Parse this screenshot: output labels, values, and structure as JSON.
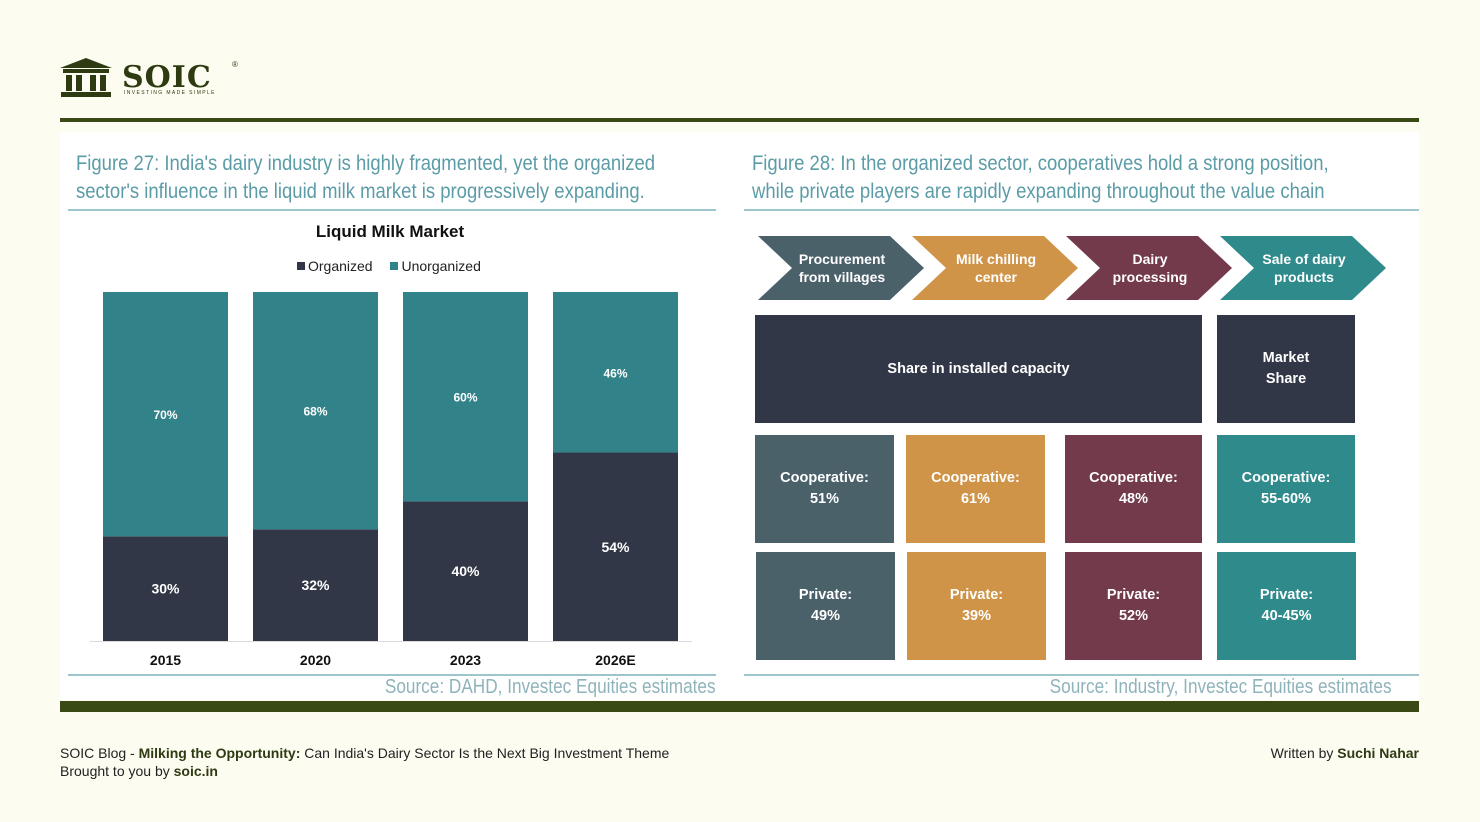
{
  "brand": {
    "name": "SOIC",
    "tagline": "INVESTING MADE SIMPLE",
    "reg": "®"
  },
  "figure27": {
    "title_line1": "Figure 27: India's dairy industry is highly fragmented, yet the organized",
    "title_line2": "sector's influence in the liquid milk market is progressively expanding.",
    "source": "Source: DAHD, Investec Equities estimates"
  },
  "chart_data": {
    "type": "bar",
    "stacked": true,
    "title": "Liquid Milk Market",
    "categories": [
      "2015",
      "2020",
      "2023",
      "2026E"
    ],
    "series": [
      {
        "name": "Organized",
        "values": [
          30,
          32,
          40,
          54
        ],
        "color": "#313747"
      },
      {
        "name": "Unorganized",
        "values": [
          70,
          68,
          60,
          46
        ],
        "color": "#328389"
      }
    ],
    "ylim": [
      0,
      100
    ],
    "value_suffix": "%",
    "legend_position": "top",
    "grid": false
  },
  "figure28": {
    "title_line1": "Figure 28: In the organized sector, cooperatives hold a strong position,",
    "title_line2": "while private players are rapidly expanding throughout the value chain",
    "source": "Source: Industry, Investec Equities estimates",
    "stages": [
      {
        "line1": "Procurement",
        "line2": "from villages",
        "color": "#4b616a"
      },
      {
        "line1": "Milk chilling",
        "line2": "center",
        "color": "#d09449"
      },
      {
        "line1": "Dairy",
        "line2": "processing",
        "color": "#733a4b"
      },
      {
        "line1": "Sale of dairy",
        "line2": "products",
        "color": "#2f8a8c"
      }
    ],
    "header_capacity": "Share in installed capacity",
    "header_market": "Market\nShare",
    "header_color": "#313747",
    "cooperative": [
      "Cooperative:\n51%",
      "Cooperative:\n61%",
      "Cooperative:\n48%",
      "Cooperative:\n55-60%"
    ],
    "private": [
      "Private:\n49%",
      "Private:\n39%",
      "Private:\n52%",
      "Private:\n40-45%"
    ]
  },
  "footer": {
    "prefix": "SOIC Blog - ",
    "blog_title": "Milking the Opportunity:",
    "blog_subtitle": " Can India's Dairy Sector Is the Next Big Investment Theme",
    "brought_prefix": "Brought to you by ",
    "site": "soic.in",
    "written_prefix": "Written by ",
    "author": "Suchi Nahar"
  }
}
